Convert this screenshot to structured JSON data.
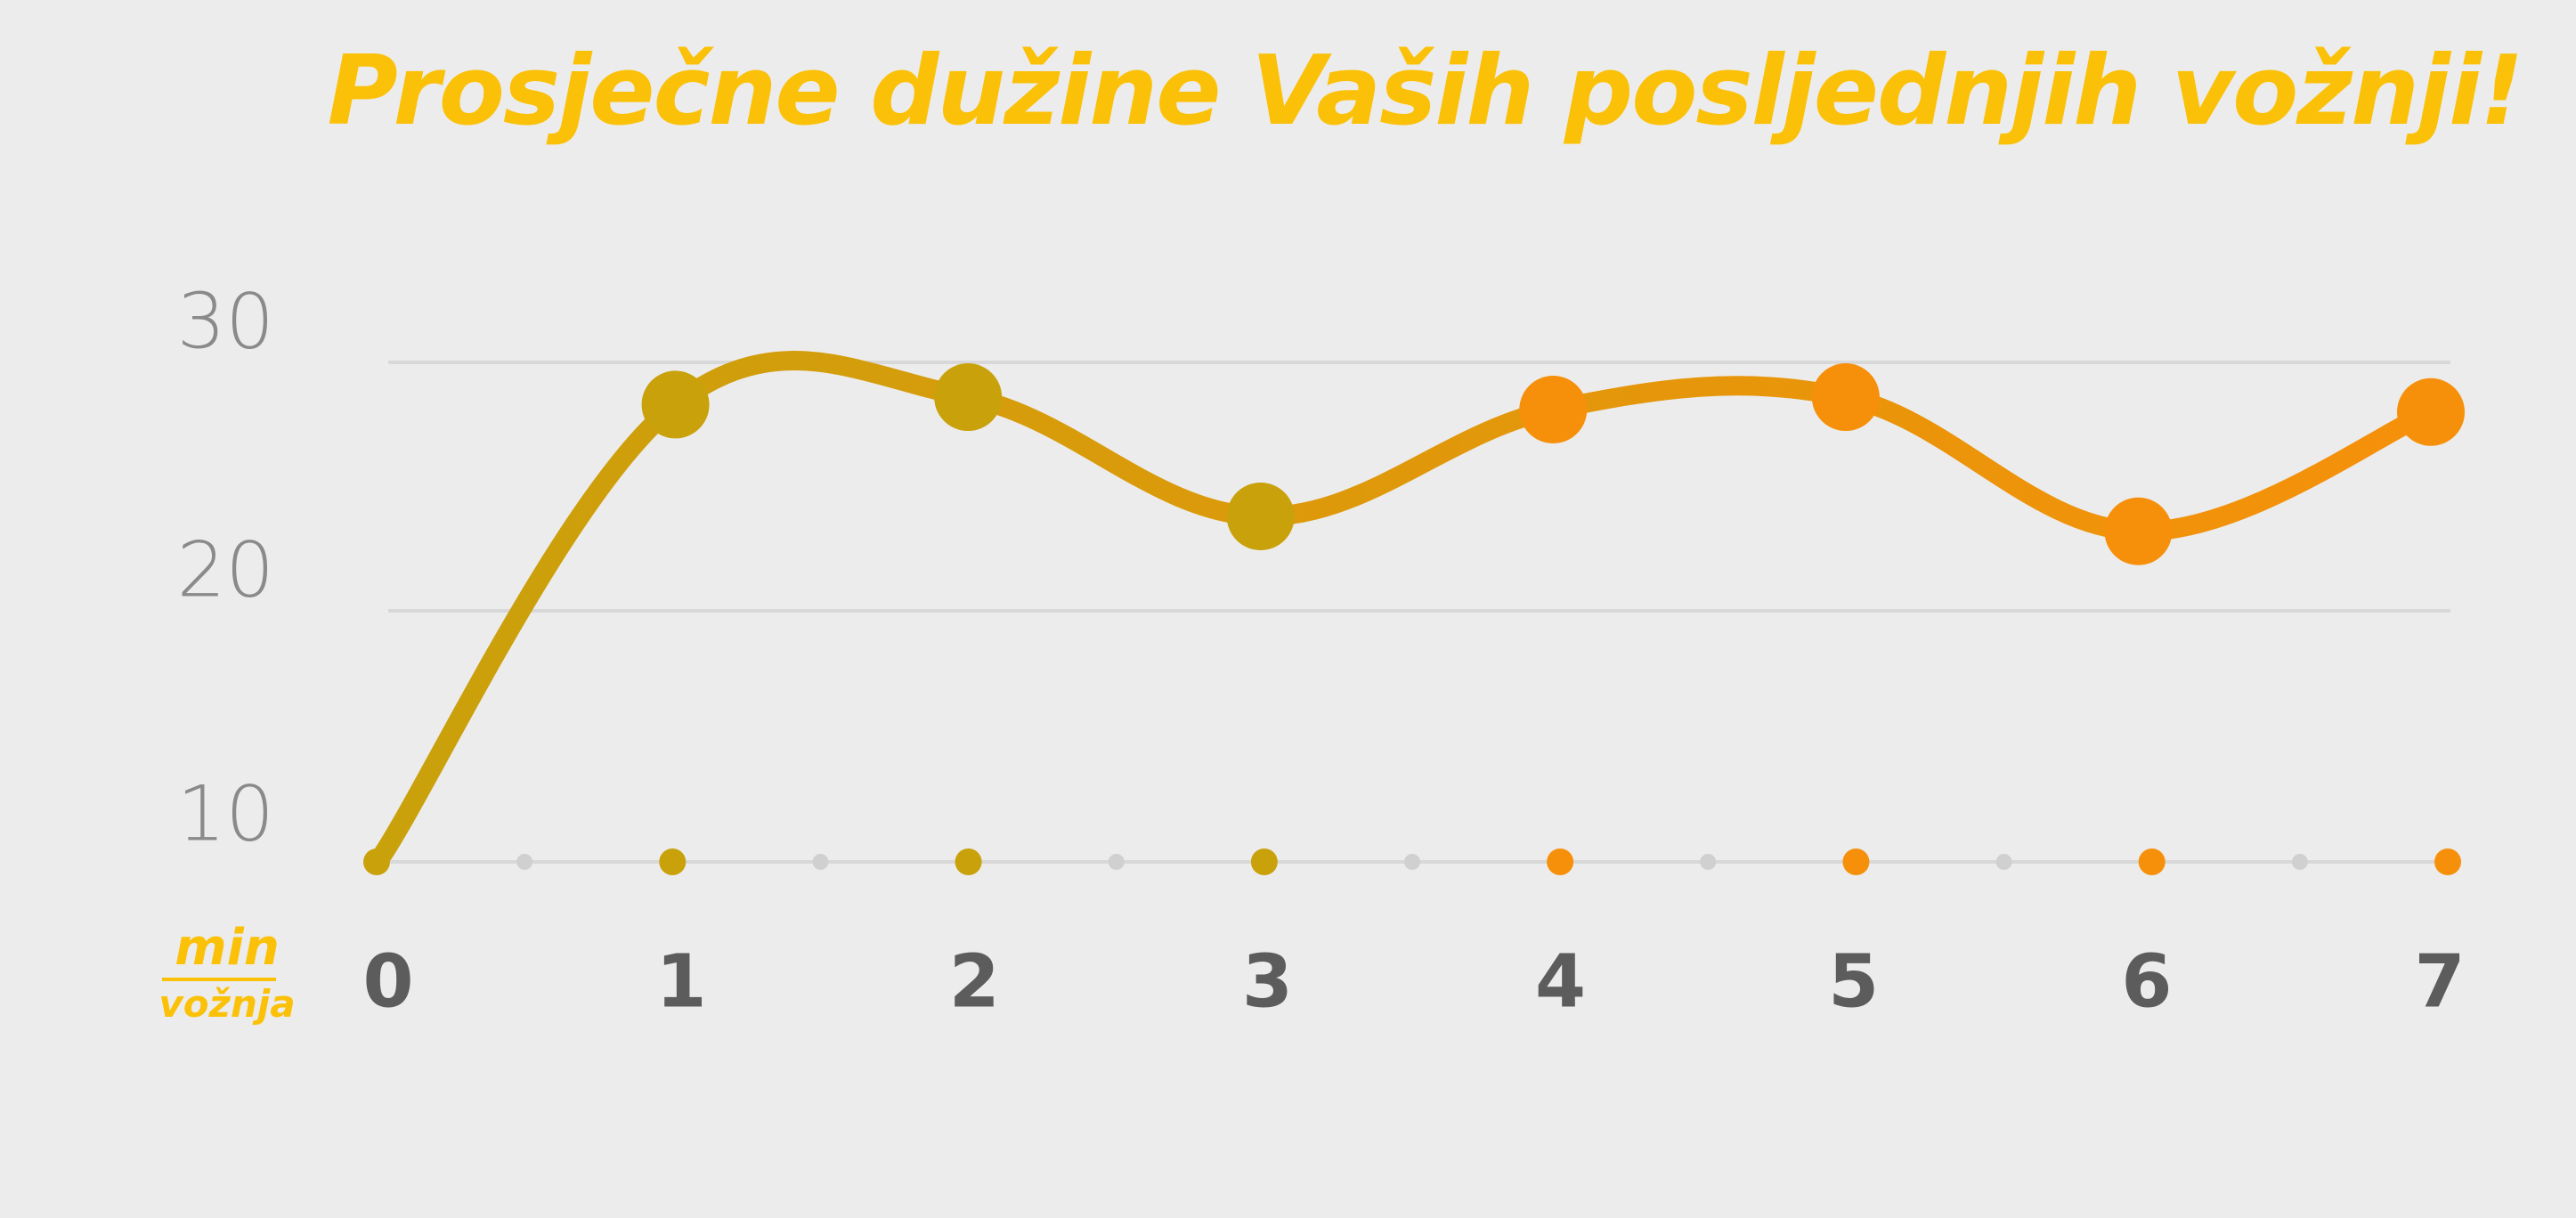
{
  "colors": {
    "title": "#fbc109",
    "unit_label": "#fbc109",
    "line_start": "#c9a10b",
    "line_end": "#f6900a",
    "grid": "#d8d8d8",
    "y_tick_text": "#8a8a8a",
    "x_tick_text": "#5c5c5c",
    "minor_dot": "#d0d0d0"
  },
  "unit_label": {
    "top": "min",
    "bottom": "vožnja"
  },
  "chart_data": {
    "type": "line",
    "title": "Prosječne dužine Vaših posljednjih vožnji!",
    "xlabel": "",
    "ylabel": "min / vožnja",
    "x": [
      0,
      1,
      2,
      3,
      4,
      5,
      6,
      7
    ],
    "series": [
      {
        "values": [
          10.2,
          28.3,
          28.6,
          23.8,
          28.1,
          28.6,
          23.2,
          28.0
        ]
      }
    ],
    "x_ticks": [
      "0",
      "1",
      "2",
      "3",
      "4",
      "5",
      "6",
      "7"
    ],
    "y_ticks": [
      "10",
      "20",
      "30"
    ],
    "xlim": [
      0,
      7
    ],
    "ylim": [
      10,
      30
    ],
    "grid": true,
    "legend": "none"
  }
}
